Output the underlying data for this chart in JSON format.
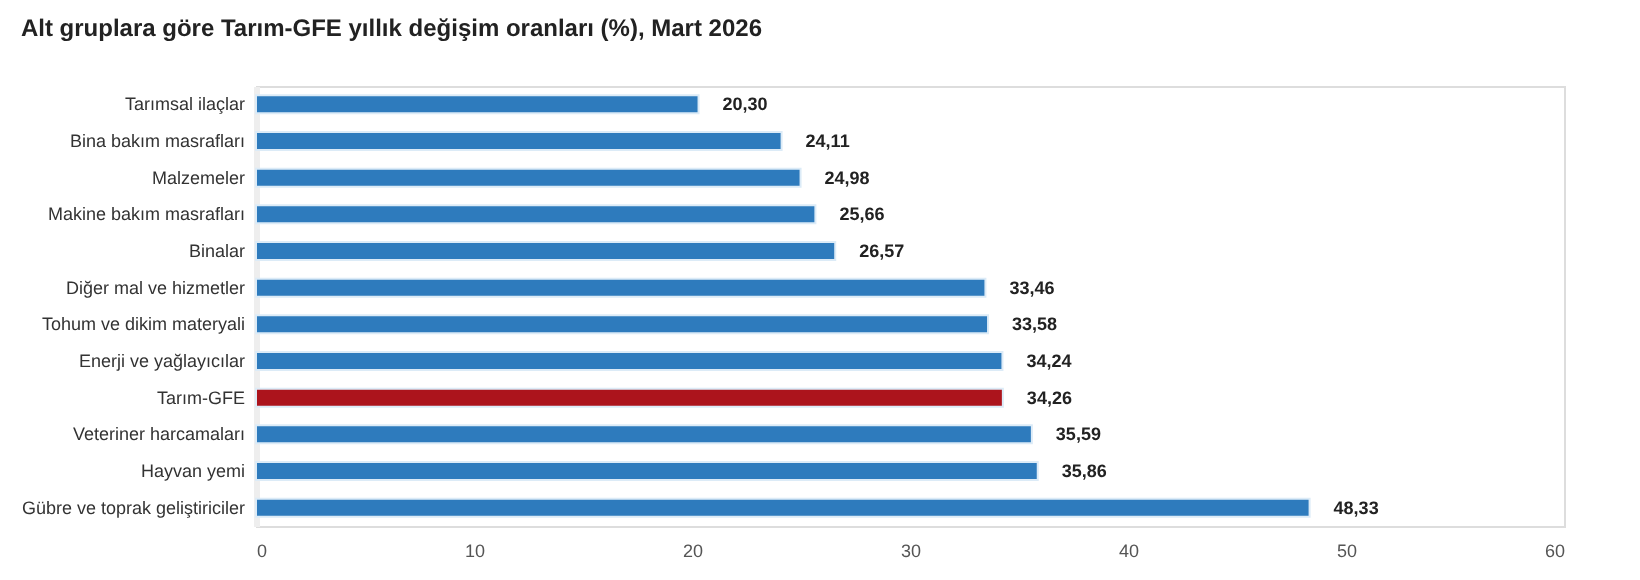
{
  "chart_data": {
    "type": "bar",
    "orientation": "horizontal",
    "title": "Alt gruplara göre Tarım-GFE yıllık değişim oranları (%), Mart 2026",
    "categories": [
      "Tarımsal ilaçlar",
      "Bina bakım masrafları",
      "Malzemeler",
      "Makine bakım masrafları",
      "Binalar",
      "Diğer mal ve hizmetler",
      "Tohum ve dikim materyali",
      "Enerji  ve yağlayıcılar",
      "Tarım-GFE",
      "Veteriner harcamaları",
      "Hayvan yemi",
      "Gübre ve toprak geliştiriciler"
    ],
    "values": [
      20.3,
      24.11,
      24.98,
      25.66,
      26.57,
      33.46,
      33.58,
      34.24,
      34.26,
      35.59,
      35.86,
      48.33
    ],
    "colors": [
      "#2e7bbd",
      "#2e7bbd",
      "#2e7bbd",
      "#2e7bbd",
      "#2e7bbd",
      "#2e7bbd",
      "#2e7bbd",
      "#2e7bbd",
      "#ac141c",
      "#2e7bbd",
      "#2e7bbd",
      "#2e7bbd"
    ],
    "value_labels": [
      "20,30",
      "24,11",
      "24,98",
      "25,66",
      "26,57",
      "33,46",
      "33,58",
      "34,24",
      "34,26",
      "35,59",
      "35,86",
      "48,33"
    ],
    "xlim": [
      0,
      60
    ],
    "xticks": [
      0,
      10,
      20,
      30,
      40,
      50,
      60
    ],
    "grid": false
  }
}
